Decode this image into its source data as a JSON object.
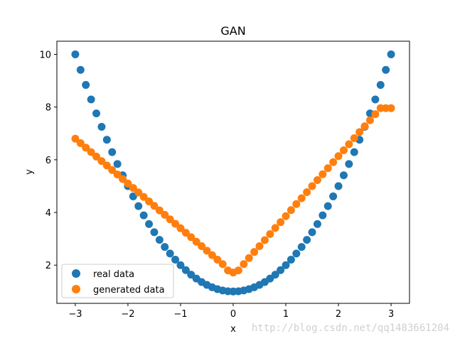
{
  "chart_data": {
    "type": "scatter",
    "title": "GAN",
    "xlabel": "x",
    "ylabel": "y",
    "xlim": [
      -3.35,
      3.35
    ],
    "ylim": [
      0.55,
      10.5
    ],
    "xticks": [
      -3,
      -2,
      -1,
      0,
      1,
      2,
      3
    ],
    "yticks": [
      2,
      4,
      6,
      8,
      10
    ],
    "grid": false,
    "legend_position": "lower-left",
    "series": [
      {
        "name": "real data",
        "color": "#1f77b4",
        "x": [
          -3.0,
          -2.9,
          -2.8,
          -2.7,
          -2.6,
          -2.5,
          -2.4,
          -2.3,
          -2.2,
          -2.1,
          -2.0,
          -1.9,
          -1.8,
          -1.7,
          -1.6,
          -1.5,
          -1.4,
          -1.3,
          -1.2,
          -1.1,
          -1.0,
          -0.9,
          -0.8,
          -0.7,
          -0.6,
          -0.5,
          -0.4,
          -0.3,
          -0.2,
          -0.1,
          0.0,
          0.1,
          0.2,
          0.3,
          0.4,
          0.5,
          0.6,
          0.7,
          0.8,
          0.9,
          1.0,
          1.1,
          1.2,
          1.3,
          1.4,
          1.5,
          1.6,
          1.7,
          1.8,
          1.9,
          2.0,
          2.1,
          2.2,
          2.3,
          2.4,
          2.5,
          2.6,
          2.7,
          2.8,
          2.9,
          3.0
        ],
        "y": [
          10.0,
          9.41,
          8.84,
          8.29,
          7.76,
          7.25,
          6.76,
          6.29,
          5.84,
          5.41,
          5.0,
          4.61,
          4.24,
          3.89,
          3.56,
          3.25,
          2.96,
          2.69,
          2.44,
          2.21,
          2.0,
          1.81,
          1.64,
          1.49,
          1.36,
          1.25,
          1.16,
          1.09,
          1.04,
          1.01,
          1.0,
          1.01,
          1.04,
          1.09,
          1.16,
          1.25,
          1.36,
          1.49,
          1.64,
          1.81,
          2.0,
          2.21,
          2.44,
          2.69,
          2.96,
          3.25,
          3.56,
          3.89,
          4.24,
          4.61,
          5.0,
          5.41,
          5.84,
          6.29,
          6.76,
          7.25,
          7.76,
          8.29,
          8.84,
          9.41,
          10.0
        ]
      },
      {
        "name": "generated data",
        "color": "#ff7f0e",
        "x": [
          -3.0,
          -2.9,
          -2.8,
          -2.7,
          -2.6,
          -2.5,
          -2.4,
          -2.3,
          -2.2,
          -2.1,
          -2.0,
          -1.9,
          -1.8,
          -1.7,
          -1.6,
          -1.5,
          -1.4,
          -1.3,
          -1.2,
          -1.1,
          -1.0,
          -0.9,
          -0.8,
          -0.7,
          -0.6,
          -0.5,
          -0.4,
          -0.3,
          -0.2,
          -0.1,
          0.0,
          0.1,
          0.2,
          0.3,
          0.4,
          0.5,
          0.6,
          0.7,
          0.8,
          0.9,
          1.0,
          1.1,
          1.2,
          1.3,
          1.4,
          1.5,
          1.6,
          1.7,
          1.8,
          1.9,
          2.0,
          2.1,
          2.2,
          2.3,
          2.4,
          2.5,
          2.6,
          2.7,
          2.8,
          2.9,
          3.0
        ],
        "y": [
          6.8,
          6.63,
          6.46,
          6.29,
          6.12,
          5.95,
          5.78,
          5.61,
          5.44,
          5.27,
          5.1,
          4.93,
          4.76,
          4.59,
          4.42,
          4.25,
          4.08,
          3.91,
          3.74,
          3.57,
          3.4,
          3.23,
          3.06,
          2.89,
          2.72,
          2.55,
          2.38,
          2.21,
          2.04,
          1.8,
          1.72,
          1.8,
          2.04,
          2.27,
          2.5,
          2.72,
          2.95,
          3.18,
          3.41,
          3.63,
          3.86,
          4.09,
          4.32,
          4.54,
          4.77,
          5.0,
          5.23,
          5.45,
          5.68,
          5.91,
          6.14,
          6.36,
          6.59,
          6.82,
          7.05,
          7.27,
          7.5,
          7.73,
          7.96,
          7.96,
          7.96
        ]
      }
    ]
  },
  "watermark": "http://blog.csdn.net/qq1483661204"
}
